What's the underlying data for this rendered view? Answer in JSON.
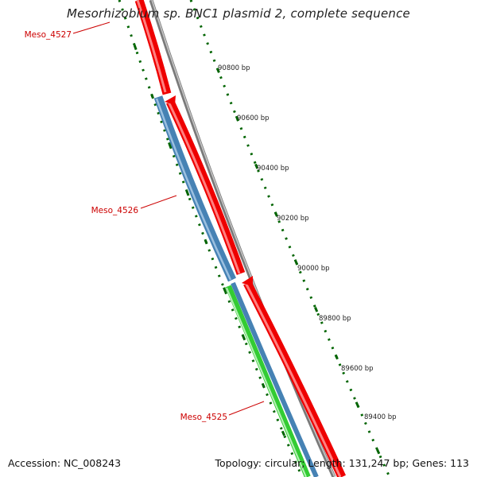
{
  "title": "Mesorhizobium sp. BNC1 plasmid 2, complete sequence",
  "footer": {
    "accession": "Accession: NC_008243",
    "summary": "Topology: circular; Length: 131,247 bp; Genes: 113"
  },
  "colors": {
    "backbone": "#808080",
    "forward_gene": "#ff0000",
    "reverse_gene_a": "#4682b4",
    "reverse_gene_b": "#33cc33",
    "ticks": "#006400",
    "gene_label": "#cc0000",
    "tick_label": "#222222"
  },
  "genes": [
    {
      "name": "Meso_4527",
      "strand": "forward",
      "color": "#ff0000"
    },
    {
      "name": "Meso_4526",
      "strand": "reverse",
      "color": "#4682b4"
    },
    {
      "name": "Meso_4525",
      "strand": "reverse",
      "color": "#33cc33"
    }
  ],
  "tick_labels": [
    "90800 bp",
    "90600 bp",
    "90400 bp",
    "90200 bp",
    "90000 bp",
    "89800 bp",
    "89600 bp",
    "89400 bp"
  ]
}
